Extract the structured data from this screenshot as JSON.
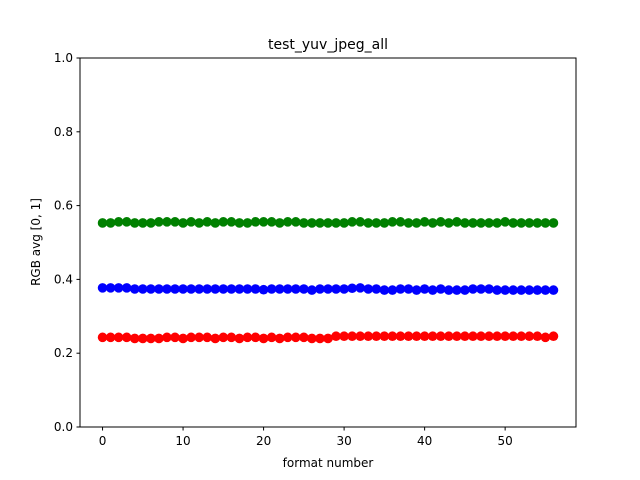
{
  "chart_data": {
    "type": "scatter",
    "title": "test_yuv_jpeg_all",
    "xlabel": "format number",
    "ylabel": "RGB avg [0, 1]",
    "xlim": [
      -2.8,
      58.8
    ],
    "ylim": [
      0.0,
      1.0
    ],
    "xticks": [
      0,
      10,
      20,
      30,
      40,
      50
    ],
    "yticks": [
      "0.0",
      "0.2",
      "0.4",
      "0.6",
      "0.8",
      "1.0"
    ],
    "grid": false,
    "x": [
      0,
      1,
      2,
      3,
      4,
      5,
      6,
      7,
      8,
      9,
      10,
      11,
      12,
      13,
      14,
      15,
      16,
      17,
      18,
      19,
      20,
      21,
      22,
      23,
      24,
      25,
      26,
      27,
      28,
      29,
      30,
      31,
      32,
      33,
      34,
      35,
      36,
      37,
      38,
      39,
      40,
      41,
      42,
      43,
      44,
      45,
      46,
      47,
      48,
      49,
      50,
      51,
      52,
      53,
      54,
      55,
      56
    ],
    "series": [
      {
        "color": "#ff0000",
        "values": [
          0.243,
          0.243,
          0.243,
          0.243,
          0.24,
          0.24,
          0.24,
          0.24,
          0.243,
          0.243,
          0.24,
          0.243,
          0.243,
          0.243,
          0.24,
          0.243,
          0.243,
          0.24,
          0.243,
          0.243,
          0.24,
          0.243,
          0.24,
          0.243,
          0.243,
          0.243,
          0.24,
          0.24,
          0.24,
          0.246,
          0.246,
          0.246,
          0.246,
          0.246,
          0.246,
          0.246,
          0.246,
          0.246,
          0.246,
          0.246,
          0.246,
          0.246,
          0.246,
          0.246,
          0.246,
          0.246,
          0.246,
          0.246,
          0.246,
          0.246,
          0.246,
          0.246,
          0.246,
          0.246,
          0.246,
          0.243,
          0.246
        ]
      },
      {
        "color": "#008000",
        "values": [
          0.553,
          0.553,
          0.556,
          0.556,
          0.553,
          0.553,
          0.553,
          0.556,
          0.556,
          0.556,
          0.553,
          0.556,
          0.553,
          0.556,
          0.553,
          0.556,
          0.556,
          0.553,
          0.553,
          0.556,
          0.556,
          0.556,
          0.553,
          0.556,
          0.556,
          0.553,
          0.553,
          0.553,
          0.553,
          0.553,
          0.553,
          0.556,
          0.556,
          0.553,
          0.553,
          0.553,
          0.556,
          0.556,
          0.553,
          0.553,
          0.556,
          0.553,
          0.556,
          0.553,
          0.556,
          0.553,
          0.553,
          0.553,
          0.553,
          0.553,
          0.556,
          0.553,
          0.553,
          0.553,
          0.553,
          0.553,
          0.553
        ]
      },
      {
        "color": "#0000ff",
        "values": [
          0.377,
          0.377,
          0.377,
          0.377,
          0.374,
          0.374,
          0.374,
          0.374,
          0.374,
          0.374,
          0.374,
          0.374,
          0.374,
          0.374,
          0.374,
          0.374,
          0.374,
          0.374,
          0.374,
          0.374,
          0.372,
          0.374,
          0.374,
          0.374,
          0.374,
          0.374,
          0.371,
          0.374,
          0.374,
          0.374,
          0.374,
          0.376,
          0.377,
          0.374,
          0.374,
          0.371,
          0.371,
          0.374,
          0.374,
          0.371,
          0.374,
          0.371,
          0.374,
          0.371,
          0.371,
          0.371,
          0.374,
          0.374,
          0.374,
          0.371,
          0.371,
          0.371,
          0.371,
          0.371,
          0.371,
          0.371,
          0.371
        ]
      }
    ]
  }
}
